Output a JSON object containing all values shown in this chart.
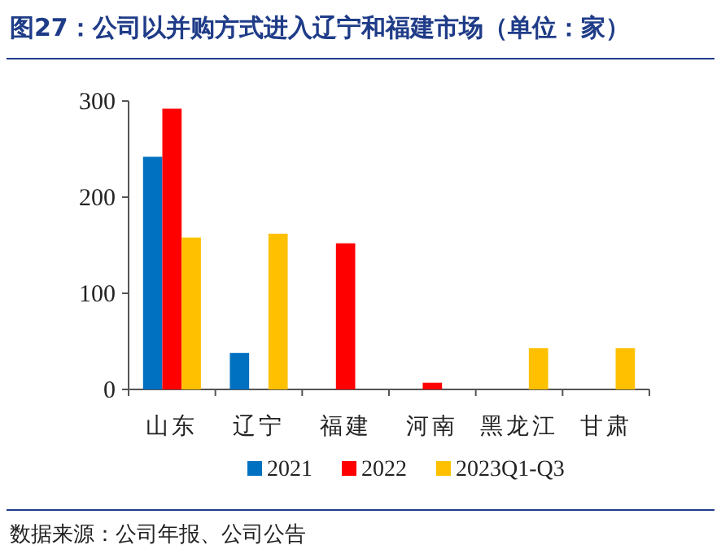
{
  "chart_data": {
    "type": "bar",
    "title": "图27：公司以并购方式进入辽宁和福建市场（单位：家）",
    "categories": [
      "山东",
      "辽宁",
      "福建",
      "河南",
      "黑龙江",
      "甘肃"
    ],
    "series": [
      {
        "name": "2021",
        "color": "#0070c0",
        "values": [
          242,
          38,
          null,
          null,
          null,
          null
        ]
      },
      {
        "name": "2022",
        "color": "#ff0000",
        "values": [
          292,
          null,
          152,
          7,
          null,
          null
        ]
      },
      {
        "name": "2023Q1-Q3",
        "color": "#ffc000",
        "values": [
          158,
          162,
          null,
          null,
          43,
          43
        ]
      }
    ],
    "ylim": [
      0,
      300
    ],
    "yticks": [
      0,
      100,
      200,
      300
    ],
    "grid": false,
    "legend": "bottom",
    "annotations": [
      "数据来源：公司年报、公司公告"
    ]
  }
}
